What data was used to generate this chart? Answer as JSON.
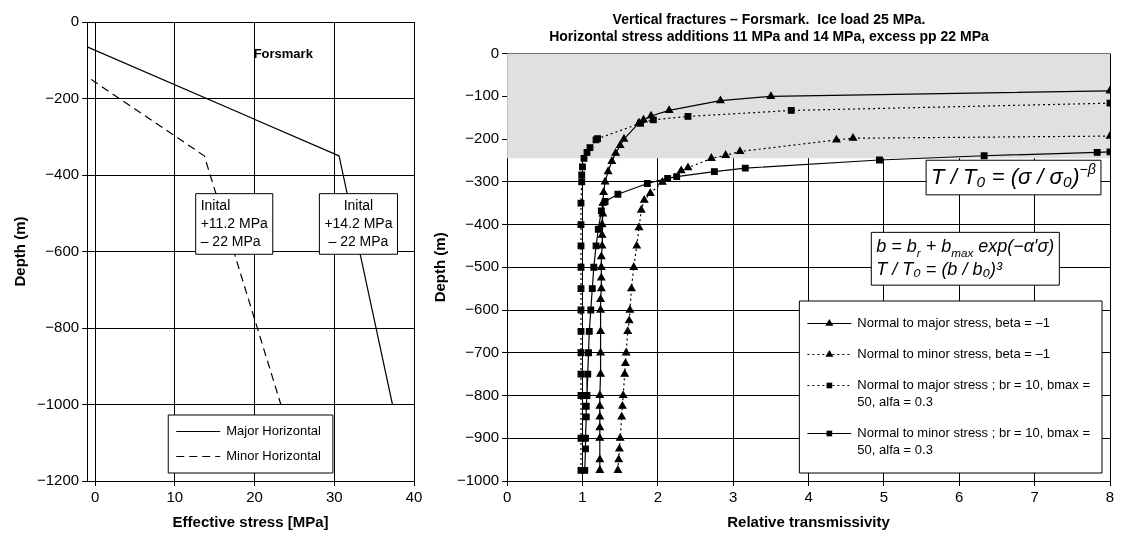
{
  "chart_data": [
    {
      "type": "line",
      "xlabel": "Effective stress [MPa]",
      "ylabel": "Depth (m)",
      "xlim": [
        -1,
        40
      ],
      "xticks": [
        0,
        10,
        20,
        30,
        40
      ],
      "ylim": [
        -1200,
        0
      ],
      "yticks": [
        -1200,
        -1000,
        -800,
        -600,
        -400,
        -200,
        0
      ],
      "grid": true,
      "legend": "bottom",
      "marker": "none",
      "annotations": [
        "Forsmark",
        "Inital\n+11.2 MPa\n– 22 MPa",
        "Inital\n+14.2 MPa\n– 22 MPa"
      ],
      "series": [
        {
          "name": "Major Horizontal",
          "color": "#000000",
          "line_style": "solid",
          "x": [
            -1,
            30.6,
            37.3
          ],
          "values": [
            -65,
            -350,
            -1000
          ]
        },
        {
          "name": "Minor Horizontal",
          "color": "#000000",
          "line_style": "dashed",
          "x": [
            -0.5,
            13.7,
            23.3
          ],
          "values": [
            -150,
            -350,
            -1000
          ]
        }
      ]
    },
    {
      "type": "line",
      "title": "Vertical fractures – Forsmark.  Ice load 25 MPa.\nHorizontal stress additions 11 MPa and 14 MPa, excess pp 22 MPa",
      "xlabel": "Relative transmissivity",
      "ylabel": "Depth (m)",
      "xlim": [
        0,
        8
      ],
      "xticks": [
        0,
        1,
        2,
        3,
        4,
        5,
        6,
        7,
        8
      ],
      "ylim": [
        -1000,
        0
      ],
      "yticks": [
        -1000,
        -900,
        -800,
        -700,
        -600,
        -500,
        -400,
        -300,
        -200,
        -100,
        0
      ],
      "grid": true,
      "legend": "bottom right",
      "bands": [
        {
          "axis": "y",
          "from": -245,
          "to": 0,
          "color": "#e0e0e0"
        }
      ],
      "annotations": [
        "T / T₀ = (σ / σ₀)$^{−β}$",
        "b = b$_{r}$ + b$_{max}$ exp(−α′σ)\nT / T₀ = (b / b₀)³"
      ],
      "series": [
        {
          "name": "Normal to major stress, beta = –1",
          "color": "#000000",
          "marker": "triangle",
          "line_style": "solid",
          "x": [
            8,
            3.5,
            2.83,
            2.15,
            1.91,
            1.81,
            1.75,
            1.55,
            1.5,
            1.44,
            1.39,
            1.34,
            1.3,
            1.28,
            1.27,
            1.27,
            1.26,
            1.26,
            1.26,
            1.25,
            1.25,
            1.25,
            1.25,
            1.24,
            1.24,
            1.24,
            1.24,
            1.24,
            1.23,
            1.23,
            1.23,
            1.23,
            1.23,
            1.23,
            1.23
          ],
          "values": [
            -87,
            -100,
            -110,
            -133,
            -146,
            -155,
            -162,
            -200,
            -215,
            -233,
            -252,
            -276,
            -300,
            -325,
            -350,
            -375,
            -400,
            -425,
            -450,
            -475,
            -500,
            -525,
            -550,
            -575,
            -600,
            -650,
            -700,
            -750,
            -800,
            -825,
            -850,
            -875,
            -900,
            -950,
            -975
          ]
        },
        {
          "name": "Normal to minor stress, beta = –1",
          "color": "#000000",
          "marker": "triangle",
          "line_style": "dotted",
          "x": [
            8,
            4.59,
            4.37,
            3.09,
            2.9,
            2.71,
            2.4,
            2.31,
            2.06,
            1.9,
            1.82,
            1.78,
            1.75,
            1.72,
            1.68,
            1.65,
            1.63,
            1.62,
            1.6,
            1.58,
            1.57,
            1.56,
            1.54,
            1.53,
            1.52,
            1.5,
            1.49,
            1.48,
            1.47
          ],
          "values": [
            -193,
            -198,
            -202,
            -229,
            -238,
            -245,
            -267,
            -274,
            -301,
            -327,
            -343,
            -366,
            -407,
            -450,
            -500,
            -550,
            -600,
            -625,
            -650,
            -700,
            -725,
            -750,
            -800,
            -825,
            -850,
            -900,
            -925,
            -950,
            -975
          ]
        },
        {
          "name": "Normal to major stress ; br = 10, bmax = 50, alfa = 0.3",
          "color": "#000000",
          "marker": "square",
          "line_style": "dotted",
          "x": [
            8,
            3.77,
            2.4,
            1.94,
            1.77,
            1.2,
            1.18,
            1.1,
            1.06,
            1.02,
            1.0,
            0.99,
            0.99,
            0.98,
            0.98,
            0.98,
            0.98,
            0.98,
            0.98,
            0.98,
            0.98,
            0.98,
            0.98,
            0.98,
            0.98
          ],
          "values": [
            -116,
            -133,
            -147,
            -155,
            -163,
            -199,
            -202,
            -220,
            -231,
            -245,
            -265,
            -284,
            -300,
            -350,
            -400,
            -450,
            -500,
            -550,
            -600,
            -650,
            -700,
            -750,
            -800,
            -900,
            -975
          ]
        },
        {
          "name": "Normal to minor stress ; br = 10, bmax = 50, alfa = 0.3",
          "color": "#000000",
          "marker": "square",
          "line_style": "solid",
          "x": [
            8,
            7.83,
            6.33,
            4.94,
            3.16,
            2.75,
            2.25,
            2.13,
            1.86,
            1.47,
            1.3,
            1.25,
            1.21,
            1.18,
            1.15,
            1.13,
            1.11,
            1.09,
            1.08,
            1.07,
            1.06,
            1.05,
            1.05,
            1.04,
            1.04,
            1.03
          ],
          "values": [
            -230,
            -231,
            -239,
            -249,
            -268,
            -276,
            -288,
            -292,
            -304,
            -329,
            -346,
            -368,
            -411,
            -450,
            -500,
            -550,
            -600,
            -650,
            -700,
            -750,
            -800,
            -825,
            -850,
            -900,
            -925,
            -975
          ]
        }
      ]
    }
  ]
}
